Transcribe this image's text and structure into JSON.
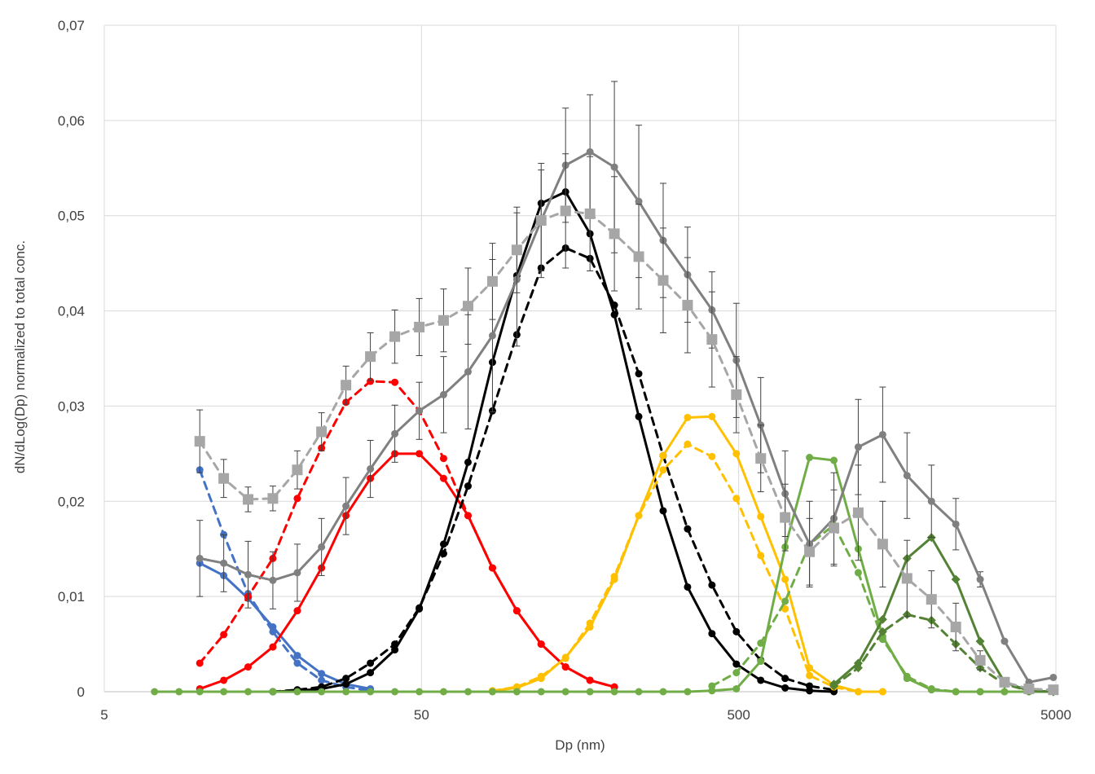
{
  "chart_data": {
    "type": "line",
    "title": "",
    "xlabel": "Dp (nm)",
    "ylabel": "dN/dLog(Dp) normalized to total conc.",
    "x_scale": "log",
    "xlim": [
      5,
      5000
    ],
    "ylim": [
      0,
      0.07
    ],
    "x_ticks": [
      {
        "value": 5,
        "label": "5"
      },
      {
        "value": 50,
        "label": "50"
      },
      {
        "value": 500,
        "label": "500"
      },
      {
        "value": 5000,
        "label": "5000"
      }
    ],
    "y_ticks": [
      {
        "value": 0,
        "label": "0"
      },
      {
        "value": 0.01,
        "label": "0,01"
      },
      {
        "value": 0.02,
        "label": "0,02"
      },
      {
        "value": 0.03,
        "label": "0,03"
      },
      {
        "value": 0.04,
        "label": "0,04"
      },
      {
        "value": 0.05,
        "label": "0,05"
      },
      {
        "value": 0.06,
        "label": "0,06"
      },
      {
        "value": 0.07,
        "label": "0,07"
      }
    ],
    "grid": true,
    "legend": "none",
    "series": [
      {
        "color": "#4472C4",
        "dash": false,
        "marker": "circle",
        "x": [
          10.0,
          11.9,
          14.2,
          17.0,
          20.3,
          24.2,
          28.9,
          34.5
        ],
        "y": [
          0.0135,
          0.0122,
          0.0098,
          0.0068,
          0.0038,
          0.0019,
          0.0008,
          0.0003
        ]
      },
      {
        "color": "#4472C4",
        "dash": true,
        "marker": "circle",
        "x": [
          10.0,
          11.9,
          14.2,
          17.0,
          20.3,
          24.2,
          28.9,
          34.5
        ],
        "y": [
          0.0233,
          0.0165,
          0.0103,
          0.0063,
          0.003,
          0.0012,
          0.0005,
          0.0001
        ]
      },
      {
        "color": "#FF0000",
        "dash": false,
        "marker": "circle",
        "x": [
          10.0,
          11.9,
          14.2,
          17.0,
          20.3,
          24.2,
          28.9,
          34.5,
          41.2,
          49.2,
          58.7,
          70.1,
          83.7,
          99.9,
          119.2,
          142.3,
          169.9,
          202.8
        ],
        "y": [
          0.0003,
          0.0012,
          0.0026,
          0.0047,
          0.0085,
          0.013,
          0.0185,
          0.0224,
          0.025,
          0.025,
          0.0224,
          0.0185,
          0.013,
          0.0085,
          0.005,
          0.0026,
          0.0012,
          0.0005
        ]
      },
      {
        "color": "#FF0000",
        "dash": true,
        "marker": "circle",
        "x": [
          10.0,
          11.9,
          14.2,
          17.0,
          20.3,
          24.2,
          28.9,
          34.5,
          41.2,
          49.2,
          58.7,
          70.1,
          83.7,
          99.9,
          119.2,
          142.3,
          169.9,
          202.8
        ],
        "y": [
          0.003,
          0.006,
          0.01,
          0.014,
          0.0203,
          0.0256,
          0.0304,
          0.0326,
          0.0325,
          0.0295,
          0.0245,
          0.0185,
          0.013,
          0.0085,
          0.005,
          0.0026,
          0.0012,
          0.0005
        ]
      },
      {
        "color": "#000000",
        "dash": false,
        "marker": "circle",
        "x": [
          17.0,
          20.3,
          24.2,
          28.9,
          34.5,
          41.2,
          49.2,
          58.7,
          70.1,
          83.7,
          99.9,
          119.2,
          142.3,
          169.9,
          202.8,
          242.1,
          289.0,
          345.0,
          411.8,
          491.6,
          586.8,
          700.4,
          836.1,
          998.0
        ],
        "y": [
          0.0,
          0.0001,
          0.0003,
          0.0008,
          0.002,
          0.0044,
          0.0087,
          0.0155,
          0.0241,
          0.0346,
          0.0437,
          0.0513,
          0.0525,
          0.0481,
          0.0396,
          0.0289,
          0.019,
          0.011,
          0.0061,
          0.0029,
          0.0012,
          0.0004,
          0.0001,
          0.0
        ]
      },
      {
        "color": "#000000",
        "dash": true,
        "marker": "circle",
        "x": [
          17.0,
          20.3,
          24.2,
          28.9,
          34.5,
          41.2,
          49.2,
          58.7,
          70.1,
          83.7,
          99.9,
          119.2,
          142.3,
          169.9,
          202.8,
          242.1,
          289.0,
          345.0,
          411.8,
          491.6,
          586.8,
          700.4,
          836.1,
          998.0
        ],
        "y": [
          0.0,
          0.0002,
          0.0005,
          0.0014,
          0.003,
          0.005,
          0.0088,
          0.0145,
          0.0216,
          0.0295,
          0.0375,
          0.0445,
          0.0466,
          0.0455,
          0.0406,
          0.0334,
          0.0248,
          0.0171,
          0.0112,
          0.0063,
          0.0033,
          0.0014,
          0.0006,
          0.0002
        ]
      },
      {
        "color": "#FFC000",
        "dash": false,
        "marker": "circle",
        "x": [
          83.7,
          99.9,
          119.2,
          142.3,
          169.9,
          202.8,
          242.1,
          289.0,
          345.0,
          411.8,
          491.6,
          586.8,
          700.4,
          836.1,
          998.0,
          1191.0,
          1422.0
        ],
        "y": [
          0.0001,
          0.0004,
          0.0014,
          0.0036,
          0.0068,
          0.0118,
          0.0185,
          0.0248,
          0.0288,
          0.0289,
          0.025,
          0.0184,
          0.0118,
          0.0025,
          0.0007,
          0.0,
          0.0
        ]
      },
      {
        "color": "#FFC000",
        "dash": true,
        "marker": "circle",
        "x": [
          83.7,
          99.9,
          119.2,
          142.3,
          169.9,
          202.8,
          242.1,
          289.0,
          345.0,
          411.8,
          491.6,
          586.8,
          700.4,
          836.1,
          998.0,
          1191.0,
          1422.0
        ],
        "y": [
          0.0001,
          0.0005,
          0.0016,
          0.0035,
          0.0072,
          0.0121,
          0.0185,
          0.0233,
          0.026,
          0.0247,
          0.0203,
          0.0143,
          0.0087,
          0.0017,
          0.0005,
          0.0,
          0.0
        ]
      },
      {
        "color": "#70AD47",
        "dash": false,
        "marker": "circle",
        "x": [
          7.2,
          8.6,
          10.0,
          11.9,
          14.2,
          17.0,
          20.3,
          24.2,
          28.9,
          34.5,
          41.2,
          49.2,
          58.7,
          70.1,
          83.7,
          99.9,
          119.2,
          142.3,
          169.9,
          202.8,
          242.1,
          289.0,
          345.0,
          411.8,
          491.6,
          586.8,
          700.4,
          836.1,
          998.0,
          1191.0,
          1422.0,
          1697.0,
          2026.0,
          2418.0,
          2886.0,
          3444.0,
          4111.0,
          4908.0
        ],
        "y": [
          0,
          0,
          0,
          0,
          0,
          0,
          0,
          0,
          0,
          0,
          0,
          0,
          0,
          0,
          0,
          0,
          0,
          0,
          0,
          0,
          0,
          0,
          0,
          0.0001,
          0.0003,
          0.0032,
          0.0152,
          0.0246,
          0.0243,
          0.015,
          0.0058,
          0.0014,
          0.0002,
          0.0,
          0.0,
          0.0,
          0.0,
          0.0
        ]
      },
      {
        "color": "#70AD47",
        "dash": true,
        "marker": "circle",
        "x": [
          411.8,
          491.6,
          586.8,
          700.4,
          836.1,
          998.0,
          1191.0,
          1422.0,
          1697.0,
          2026.0,
          2418.0,
          2886.0,
          3444.0,
          4111.0,
          4908.0
        ],
        "y": [
          0.0006,
          0.002,
          0.0051,
          0.0095,
          0.0155,
          0.0175,
          0.0125,
          0.0055,
          0.0016,
          0.0003,
          0.0,
          0.0,
          0.0,
          0.0,
          0.0
        ]
      },
      {
        "color": "#548235",
        "dash": false,
        "marker": "diamond",
        "x": [
          998.0,
          1191.0,
          1422.0,
          1697.0,
          2026.0,
          2418.0,
          2886.0,
          3444.0,
          4111.0,
          4908.0
        ],
        "y": [
          0.0008,
          0.003,
          0.0076,
          0.014,
          0.0162,
          0.0118,
          0.0053,
          0.001,
          0.0001,
          0.0
        ]
      },
      {
        "color": "#548235",
        "dash": true,
        "marker": "diamond",
        "x": [
          998.0,
          1191.0,
          1422.0,
          1697.0,
          2026.0,
          2418.0,
          2886.0,
          3444.0,
          4111.0,
          4908.0
        ],
        "y": [
          0.0006,
          0.0025,
          0.0063,
          0.0081,
          0.0075,
          0.005,
          0.0025,
          0.0008,
          0.0001,
          0.0
        ]
      },
      {
        "color": "#808080",
        "dash": false,
        "marker": "circle",
        "error_bars": true,
        "x": [
          10.0,
          11.9,
          14.2,
          17.0,
          20.3,
          24.2,
          28.9,
          34.5,
          41.2,
          49.2,
          58.7,
          70.1,
          83.7,
          99.9,
          119.2,
          142.3,
          169.9,
          202.8,
          242.1,
          289.0,
          345.0,
          411.8,
          491.6,
          586.8,
          700.4,
          836.1,
          998.0,
          1191.0,
          1422.0,
          1697.0,
          2026.0,
          2418.0,
          2886.0,
          3444.0,
          4111.0,
          4908.0
        ],
        "y": [
          0.014,
          0.0135,
          0.0123,
          0.0117,
          0.0125,
          0.0152,
          0.0195,
          0.0234,
          0.0271,
          0.0295,
          0.0312,
          0.0336,
          0.0374,
          0.0433,
          0.0495,
          0.0553,
          0.0567,
          0.0551,
          0.0515,
          0.0474,
          0.0438,
          0.0401,
          0.0348,
          0.028,
          0.0208,
          0.0155,
          0.0182,
          0.0257,
          0.027,
          0.0227,
          0.02,
          0.0176,
          0.0118,
          0.0053,
          0.001,
          0.0015
        ],
        "err": [
          0.004,
          0.003,
          0.0035,
          0.003,
          0.003,
          0.003,
          0.003,
          0.003,
          0.003,
          0.003,
          0.004,
          0.006,
          0.008,
          0.007,
          0.006,
          0.006,
          0.006,
          0.009,
          0.008,
          0.006,
          0.005,
          0.004,
          0.006,
          0.005,
          0.0045,
          0.0045,
          0.0048,
          0.005,
          0.005,
          0.0045,
          0.0038,
          0.0027,
          0.0008,
          0.0,
          0.0,
          0.0
        ]
      },
      {
        "color": "#A6A6A6",
        "dash": true,
        "marker": "square",
        "error_bars": true,
        "x": [
          10.0,
          11.9,
          14.2,
          17.0,
          20.3,
          24.2,
          28.9,
          34.5,
          41.2,
          49.2,
          58.7,
          70.1,
          83.7,
          99.9,
          119.2,
          142.3,
          169.9,
          202.8,
          242.1,
          289.0,
          345.0,
          411.8,
          491.6,
          586.8,
          700.4,
          836.1,
          998.0,
          1191.0,
          1422.0,
          1697.0,
          2026.0,
          2418.0,
          2886.0,
          3444.0,
          4111.0,
          4908.0
        ],
        "y": [
          0.0263,
          0.0224,
          0.0202,
          0.0203,
          0.0233,
          0.0273,
          0.0322,
          0.0352,
          0.0373,
          0.0383,
          0.039,
          0.0405,
          0.0431,
          0.0464,
          0.0495,
          0.0505,
          0.0502,
          0.0481,
          0.0457,
          0.0432,
          0.0406,
          0.037,
          0.0312,
          0.0245,
          0.0183,
          0.0147,
          0.0172,
          0.0188,
          0.0155,
          0.0119,
          0.0097,
          0.0068,
          0.0033,
          0.001,
          0.0003,
          0.0002
        ],
        "err": [
          0.0033,
          0.002,
          0.0013,
          0.0013,
          0.002,
          0.002,
          0.002,
          0.0025,
          0.0028,
          0.003,
          0.0033,
          0.004,
          0.004,
          0.0045,
          0.0053,
          0.006,
          0.006,
          0.006,
          0.0055,
          0.0055,
          0.005,
          0.005,
          0.004,
          0.0035,
          0.0035,
          0.0035,
          0.004,
          0.005,
          0.0045,
          0.004,
          0.003,
          0.0025,
          0.001,
          0.0,
          0.0,
          0.0
        ]
      }
    ]
  }
}
